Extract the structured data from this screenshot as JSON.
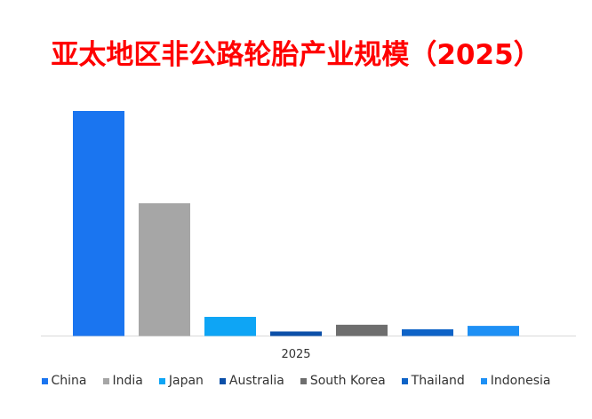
{
  "title": "亚太地区非公路轮胎产业规模（2025）",
  "chart_data": {
    "type": "bar",
    "categories": [
      "2025"
    ],
    "series": [
      {
        "name": "China",
        "values": [
          100
        ],
        "color": "#1a75f0"
      },
      {
        "name": "India",
        "values": [
          59
        ],
        "color": "#a6a6a6"
      },
      {
        "name": "Japan",
        "values": [
          8.5
        ],
        "color": "#0ea5f5"
      },
      {
        "name": "Australia",
        "values": [
          2
        ],
        "color": "#0b4fa8"
      },
      {
        "name": "South Korea",
        "values": [
          5
        ],
        "color": "#6e6e6e"
      },
      {
        "name": "Thailand",
        "values": [
          3
        ],
        "color": "#0e63c7"
      },
      {
        "name": "Indonesia",
        "values": [
          4.5
        ],
        "color": "#1e90f5"
      }
    ],
    "ylim": [
      0,
      100
    ],
    "grid": false,
    "legend_position": "bottom"
  }
}
